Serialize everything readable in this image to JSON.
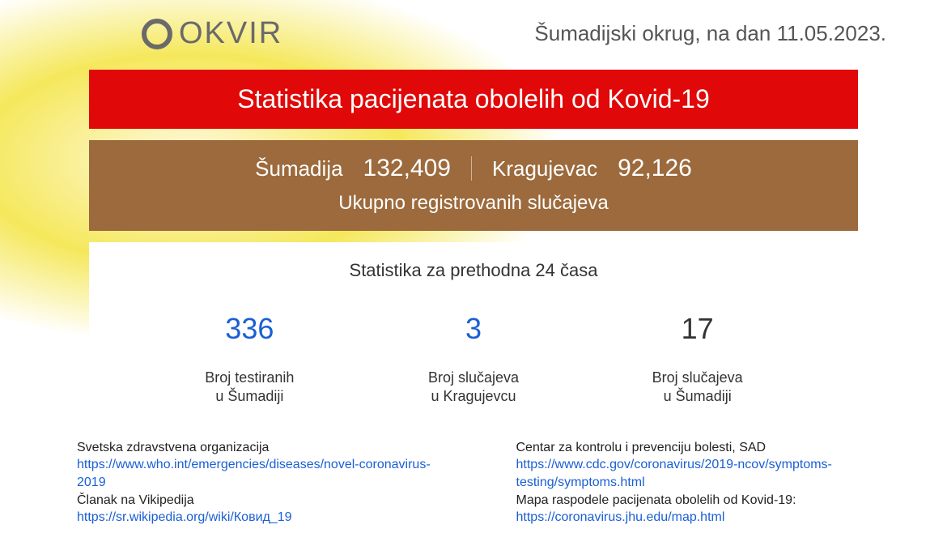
{
  "header": {
    "logo_text": "OKVIR",
    "date_prefix": "Šumadijski okrug, na dan",
    "date": "11.05.2023."
  },
  "title_bar": {
    "text": "Statistika pacijenata obolelih od Kovid-19",
    "background_color": "#e00808",
    "text_color": "#ffffff"
  },
  "totals": {
    "region1_label": "Šumadija",
    "region1_value": "132,409",
    "region2_label": "Kragujevac",
    "region2_value": "92,126",
    "subtitle": "Ukupno registrovanih slučajeva",
    "background_color": "#9c6a3c",
    "text_color": "#ffffff"
  },
  "stats24h": {
    "title": "Statistika za prethodna 24 časa",
    "columns": [
      {
        "value": "336",
        "label_line1": "Broj testiranih",
        "label_line2": "u Šumadiji",
        "color": "#1a5fd4"
      },
      {
        "value": "3",
        "label_line1": "Broj slučajeva",
        "label_line2": "u Kragujevcu",
        "color": "#1a5fd4"
      },
      {
        "value": "17",
        "label_line1": "Broj slučajeva",
        "label_line2": "u Šumadiji",
        "color": "#333333"
      }
    ],
    "background_color": "#ffffff"
  },
  "footer": {
    "left": [
      {
        "title": "Svetska zdravstvena organizacija",
        "url": "https://www.who.int/emergencies/diseases/novel-coronavirus-2019"
      },
      {
        "title": "Članak na Vikipedija",
        "url": "https://sr.wikipedia.org/wiki/Ковид_19"
      }
    ],
    "right": [
      {
        "title": "Centar za kontrolu i prevenciju bolesti, SAD",
        "url": "https://www.cdc.gov/coronavirus/2019-ncov/symptoms-testing/symptoms.html"
      },
      {
        "title": "Mapa raspodele pacijenata obolelih od Kovid-19:",
        "url": "https://coronavirus.jhu.edu/map.html"
      }
    ]
  },
  "colors": {
    "logo_gray": "#6a6a6a",
    "link_blue": "#1a5fd4",
    "background_yellow": "#f5e85c"
  }
}
